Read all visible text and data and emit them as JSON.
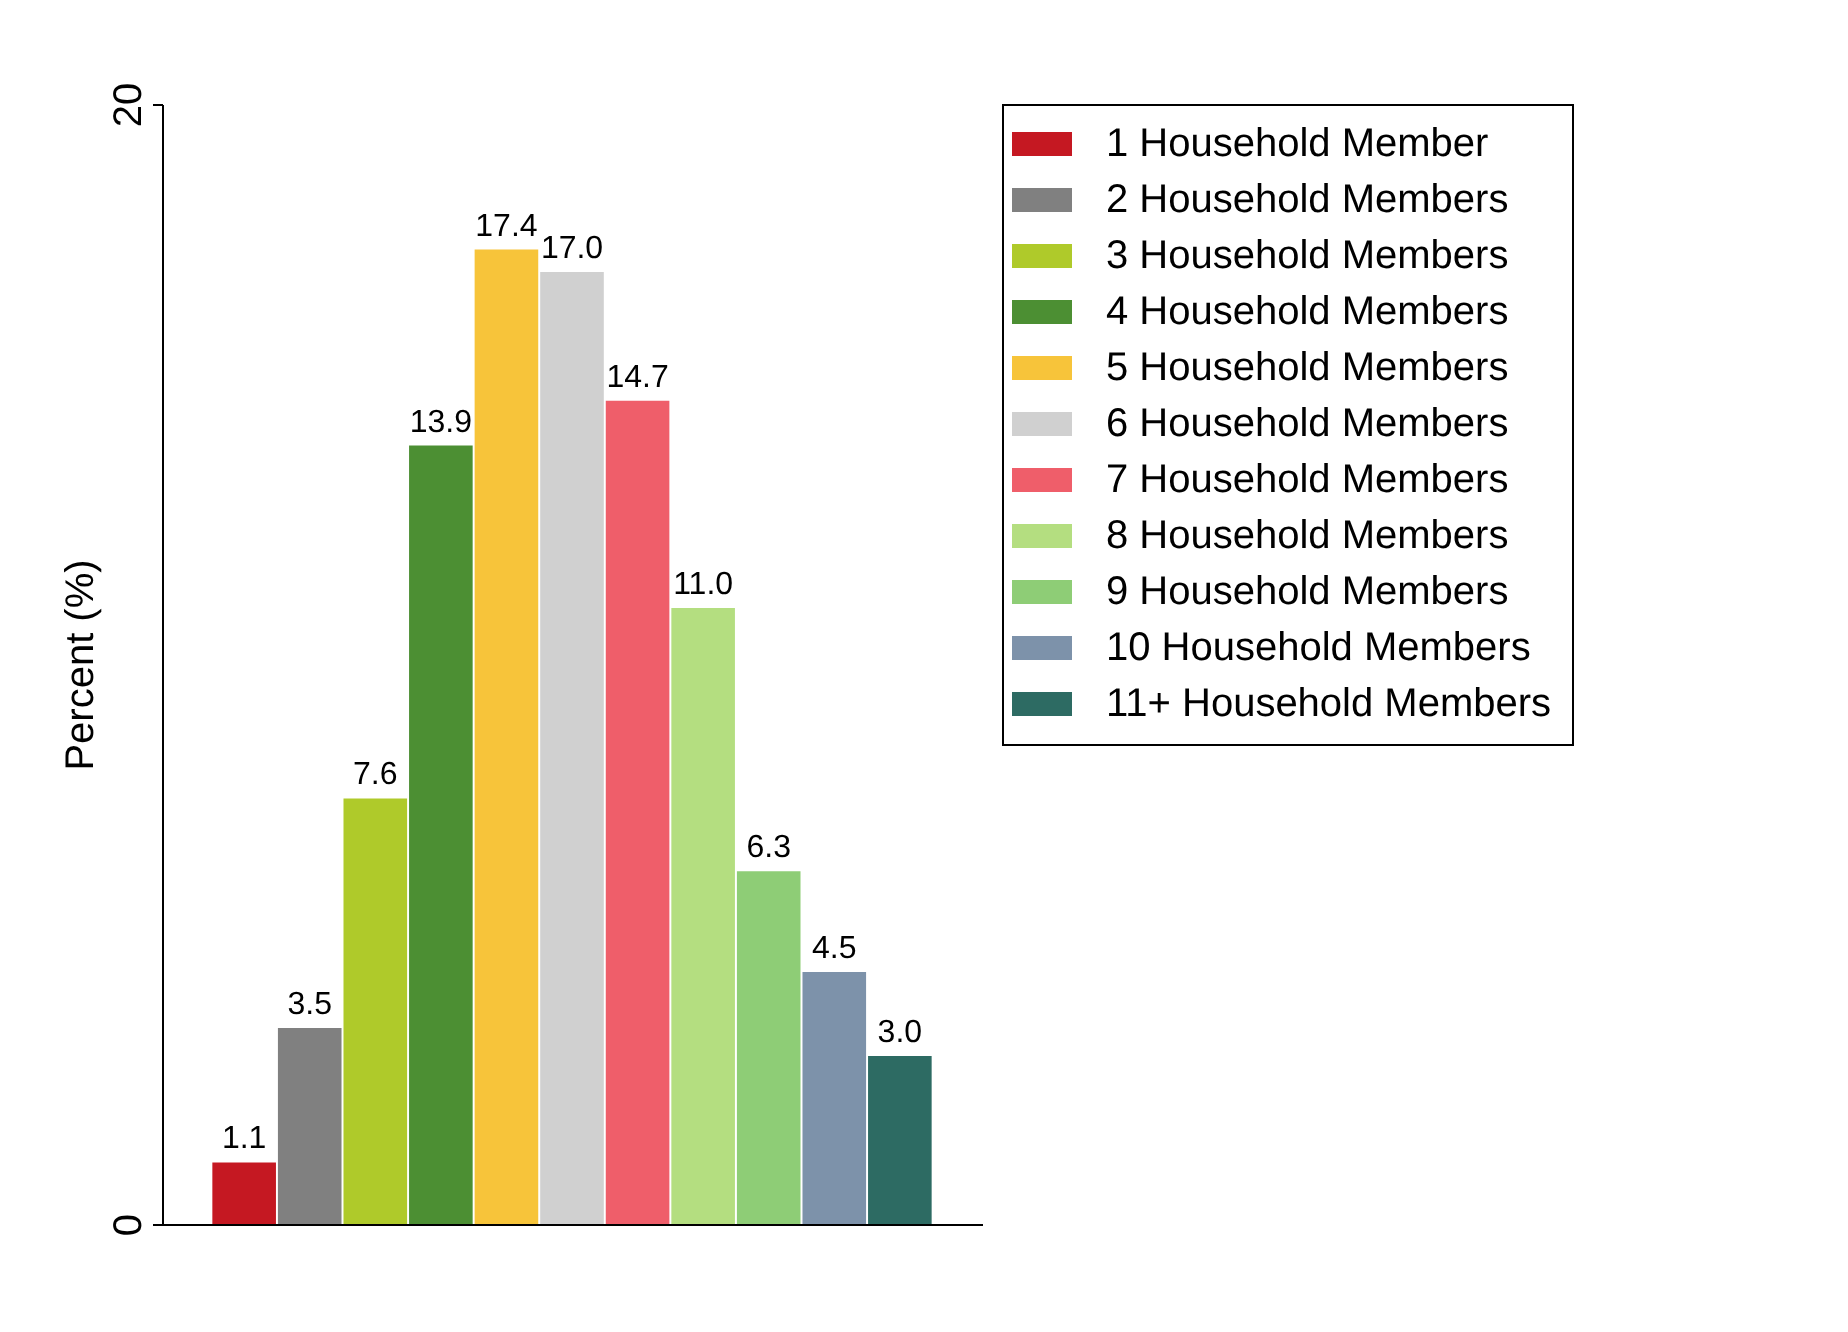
{
  "chart_data": {
    "type": "bar",
    "ylabel": "Percent (%)",
    "categories": [
      null
    ],
    "ylim": [
      0,
      20
    ],
    "yticks": [
      0,
      20
    ],
    "grid": false,
    "legend": "right",
    "series": [
      {
        "name": "1 Household Member",
        "color": "#c51822",
        "values": [
          1.1
        ],
        "value_labels": [
          "1.1"
        ]
      },
      {
        "name": "2 Household Members",
        "color": "#808080",
        "values": [
          3.5
        ],
        "value_labels": [
          "3.5"
        ]
      },
      {
        "name": "3 Household Members",
        "color": "#afca2a",
        "values": [
          7.6
        ],
        "value_labels": [
          "7.6"
        ]
      },
      {
        "name": "4 Household Members",
        "color": "#4c8f33",
        "values": [
          13.9
        ],
        "value_labels": [
          "13.9"
        ]
      },
      {
        "name": "5 Household Members",
        "color": "#f7c43a",
        "values": [
          17.4
        ],
        "value_labels": [
          "17.4"
        ]
      },
      {
        "name": "6 Household Members",
        "color": "#d0d0d0",
        "values": [
          17.0
        ],
        "value_labels": [
          "17.0"
        ]
      },
      {
        "name": "7 Household Members",
        "color": "#ef5e6a",
        "values": [
          14.7
        ],
        "value_labels": [
          "14.7"
        ]
      },
      {
        "name": "8 Household Members",
        "color": "#b4de80",
        "values": [
          11.0
        ],
        "value_labels": [
          "11.0"
        ]
      },
      {
        "name": "9 Household Members",
        "color": "#8ecd76",
        "values": [
          6.3
        ],
        "value_labels": [
          "6.3"
        ]
      },
      {
        "name": "10 Household Members",
        "color": "#7d92aa",
        "values": [
          4.5
        ],
        "value_labels": [
          "4.5"
        ]
      },
      {
        "name": "11+ Household Members",
        "color": "#2d6b63",
        "values": [
          3.0
        ],
        "value_labels": [
          "3.0"
        ]
      }
    ]
  }
}
